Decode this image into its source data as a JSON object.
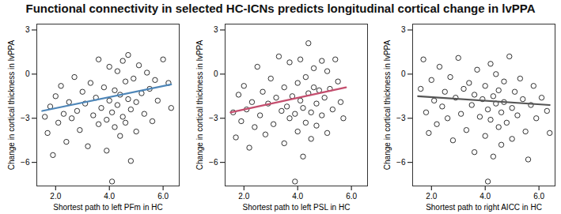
{
  "title": "Functional connectivity in selected HC-ICNs predicts longitudinal cortical change in lvPPA",
  "chart_data": [
    {
      "type": "scatter",
      "x_label": "Shortest path to left PFm in HC",
      "y_label": "Change in cortical thickness in lvPPA",
      "color": "#000000",
      "marker": "open circle",
      "xlim": [
        1.3,
        6.6
      ],
      "xticks": [
        2,
        4,
        6
      ],
      "ylim": [
        -7.6,
        3.4
      ],
      "yticks": [
        -6,
        -3,
        0,
        3
      ],
      "x": [
        1.6,
        1.7,
        1.8,
        1.9,
        2.0,
        2.1,
        2.2,
        2.3,
        2.4,
        2.5,
        2.6,
        2.7,
        2.8,
        2.9,
        3.0,
        3.1,
        3.2,
        3.3,
        3.4,
        3.5,
        3.6,
        3.6,
        3.7,
        3.8,
        3.9,
        3.9,
        4.0,
        4.0,
        4.1,
        4.1,
        4.2,
        4.2,
        4.3,
        4.3,
        4.4,
        4.4,
        4.5,
        4.5,
        4.6,
        4.6,
        4.7,
        4.7,
        4.8,
        4.8,
        4.9,
        5.0,
        5.0,
        5.1,
        5.2,
        5.3,
        5.4,
        5.5,
        5.6,
        5.7,
        5.8,
        6.0,
        6.2,
        6.3
      ],
      "values": [
        -2.9,
        -4.0,
        -2.2,
        -5.5,
        -1.5,
        -3.3,
        -0.8,
        -2.7,
        -4.6,
        -1.9,
        -3.0,
        -0.2,
        -2.5,
        -3.8,
        -1.2,
        -2.0,
        -4.9,
        -0.6,
        -2.8,
        -1.6,
        -3.4,
        1.0,
        -2.3,
        -0.9,
        -3.1,
        -5.2,
        -1.8,
        0.5,
        -2.6,
        -7.3,
        -1.1,
        -3.6,
        0.2,
        -2.1,
        -4.2,
        -1.4,
        0.9,
        -2.9,
        -0.5,
        -3.3,
        -1.7,
        1.3,
        -2.4,
        -5.9,
        -0.3,
        -1.9,
        -3.9,
        0.6,
        -1.3,
        -2.7,
        0.1,
        -1.0,
        -3.2,
        -0.4,
        -1.8,
        1.0,
        -0.6,
        -2.3
      ],
      "fit": {
        "color": "#4e86b8",
        "x": [
          1.5,
          6.3
        ],
        "values": [
          -2.5,
          -0.7
        ]
      }
    },
    {
      "type": "scatter",
      "x_label": "Shortest path to left PSL in HC",
      "y_label": "Change in cortical thickness in lvPPA",
      "color": "#000000",
      "marker": "open circle",
      "xlim": [
        1.3,
        6.6
      ],
      "xticks": [
        2,
        4,
        6
      ],
      "ylim": [
        -7.6,
        3.4
      ],
      "yticks": [
        -6,
        -3,
        0,
        3
      ],
      "x": [
        1.6,
        1.7,
        1.8,
        1.9,
        2.0,
        2.1,
        2.2,
        2.3,
        2.4,
        2.5,
        2.6,
        2.7,
        2.8,
        2.9,
        3.0,
        3.1,
        3.2,
        3.3,
        3.4,
        3.5,
        3.5,
        3.6,
        3.7,
        3.7,
        3.8,
        3.9,
        3.9,
        4.0,
        4.0,
        4.1,
        4.1,
        4.2,
        4.2,
        4.3,
        4.3,
        4.4,
        4.4,
        4.5,
        4.5,
        4.6,
        4.6,
        4.7,
        4.7,
        4.8,
        4.9,
        4.9,
        5.0,
        5.1,
        5.1,
        5.2,
        5.3,
        5.4,
        5.5,
        5.6,
        5.7
      ],
      "values": [
        -2.6,
        -4.3,
        -1.4,
        -3.2,
        -0.8,
        -2.4,
        -5.0,
        -1.9,
        -3.6,
        0.5,
        -2.8,
        -1.2,
        -4.1,
        -2.0,
        -0.3,
        -3.4,
        -1.6,
        1.2,
        -2.5,
        -4.7,
        -0.9,
        -2.2,
        0.8,
        -3.0,
        -1.5,
        -7.3,
        -2.7,
        -0.6,
        -3.9,
        -1.8,
        1.0,
        -2.3,
        -5.6,
        -0.2,
        -3.3,
        -1.3,
        2.1,
        -2.6,
        -4.4,
        -0.9,
        0.4,
        -2.0,
        -3.5,
        -1.1,
        0.9,
        -2.8,
        -1.6,
        -4.0,
        0.2,
        -1.0,
        -2.4,
        1.0,
        -0.5,
        -1.9,
        -3.0
      ],
      "fit": {
        "color": "#c44e6e",
        "x": [
          1.5,
          5.8
        ],
        "values": [
          -2.6,
          -0.9
        ]
      }
    },
    {
      "type": "scatter",
      "x_label": "Shortest path to right AICC in HC",
      "y_label": "Change in cortical thickness in lvPPA",
      "color": "#000000",
      "marker": "open circle",
      "xlim": [
        1.3,
        6.6
      ],
      "xticks": [
        2,
        4,
        6
      ],
      "ylim": [
        -7.6,
        3.4
      ],
      "yticks": [
        -6,
        -3,
        0,
        3
      ],
      "x": [
        1.6,
        1.7,
        1.8,
        1.9,
        2.0,
        2.1,
        2.2,
        2.3,
        2.4,
        2.5,
        2.6,
        2.7,
        2.8,
        2.9,
        3.0,
        3.1,
        3.2,
        3.3,
        3.4,
        3.5,
        3.6,
        3.6,
        3.7,
        3.8,
        3.9,
        4.0,
        4.0,
        4.1,
        4.1,
        4.2,
        4.2,
        4.3,
        4.3,
        4.4,
        4.4,
        4.5,
        4.5,
        4.6,
        4.6,
        4.7,
        4.7,
        4.8,
        4.9,
        5.0,
        5.0,
        5.1,
        5.2,
        5.3,
        5.4,
        5.5,
        5.6,
        5.7,
        5.8,
        5.9,
        6.1,
        6.3,
        6.4
      ],
      "values": [
        -1.0,
        1.0,
        -2.6,
        -4.0,
        -0.4,
        -1.8,
        -3.4,
        0.5,
        -2.2,
        -1.2,
        -3.0,
        -0.2,
        -4.5,
        -1.6,
        1.1,
        -2.7,
        -1.0,
        -3.8,
        -0.6,
        -2.1,
        -5.3,
        -1.4,
        0.3,
        -2.9,
        -1.7,
        -4.2,
        -0.8,
        -2.4,
        -7.3,
        0.7,
        -3.1,
        -1.5,
        -5.6,
        -2.0,
        0.0,
        -3.6,
        -1.1,
        -2.6,
        -4.8,
        -0.5,
        -1.9,
        -3.3,
        1.2,
        -2.3,
        -4.4,
        -1.2,
        -2.8,
        -0.3,
        -1.7,
        -3.9,
        -5.8,
        -2.1,
        -0.8,
        -3.0,
        -1.6,
        -2.5,
        -4.0
      ],
      "fit": {
        "color": "#555555",
        "x": [
          1.5,
          6.4
        ],
        "values": [
          -1.5,
          -2.1
        ]
      }
    }
  ]
}
